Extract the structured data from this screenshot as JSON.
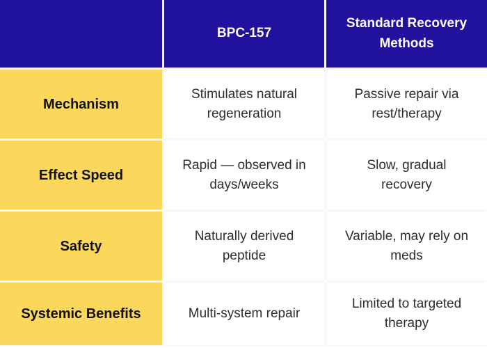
{
  "colors": {
    "header_bg": "#21129E",
    "header_text": "#FFFFFF",
    "label_bg": "#FBD75B",
    "label_text": "#111111",
    "cell_text": "#2D2D2D"
  },
  "chart_data": {
    "type": "table",
    "title": "",
    "columns": [
      "",
      "BPC-157",
      "Standard Recovery\nMethods"
    ],
    "row_labels": [
      "Mechanism",
      "Effect Speed",
      "Safety",
      "Systemic Benefits"
    ],
    "rows": [
      [
        "Mechanism",
        "Stimulates natural\nregeneration",
        "Passive repair via\nrest/therapy"
      ],
      [
        "Effect Speed",
        "Rapid — observed in\ndays/weeks",
        "Slow, gradual\nrecovery"
      ],
      [
        "Safety",
        "Naturally derived\npeptide",
        "Variable, may rely on\nmeds"
      ],
      [
        "Systemic Benefits",
        "Multi-system repair",
        "Limited to targeted\ntherapy"
      ]
    ]
  }
}
